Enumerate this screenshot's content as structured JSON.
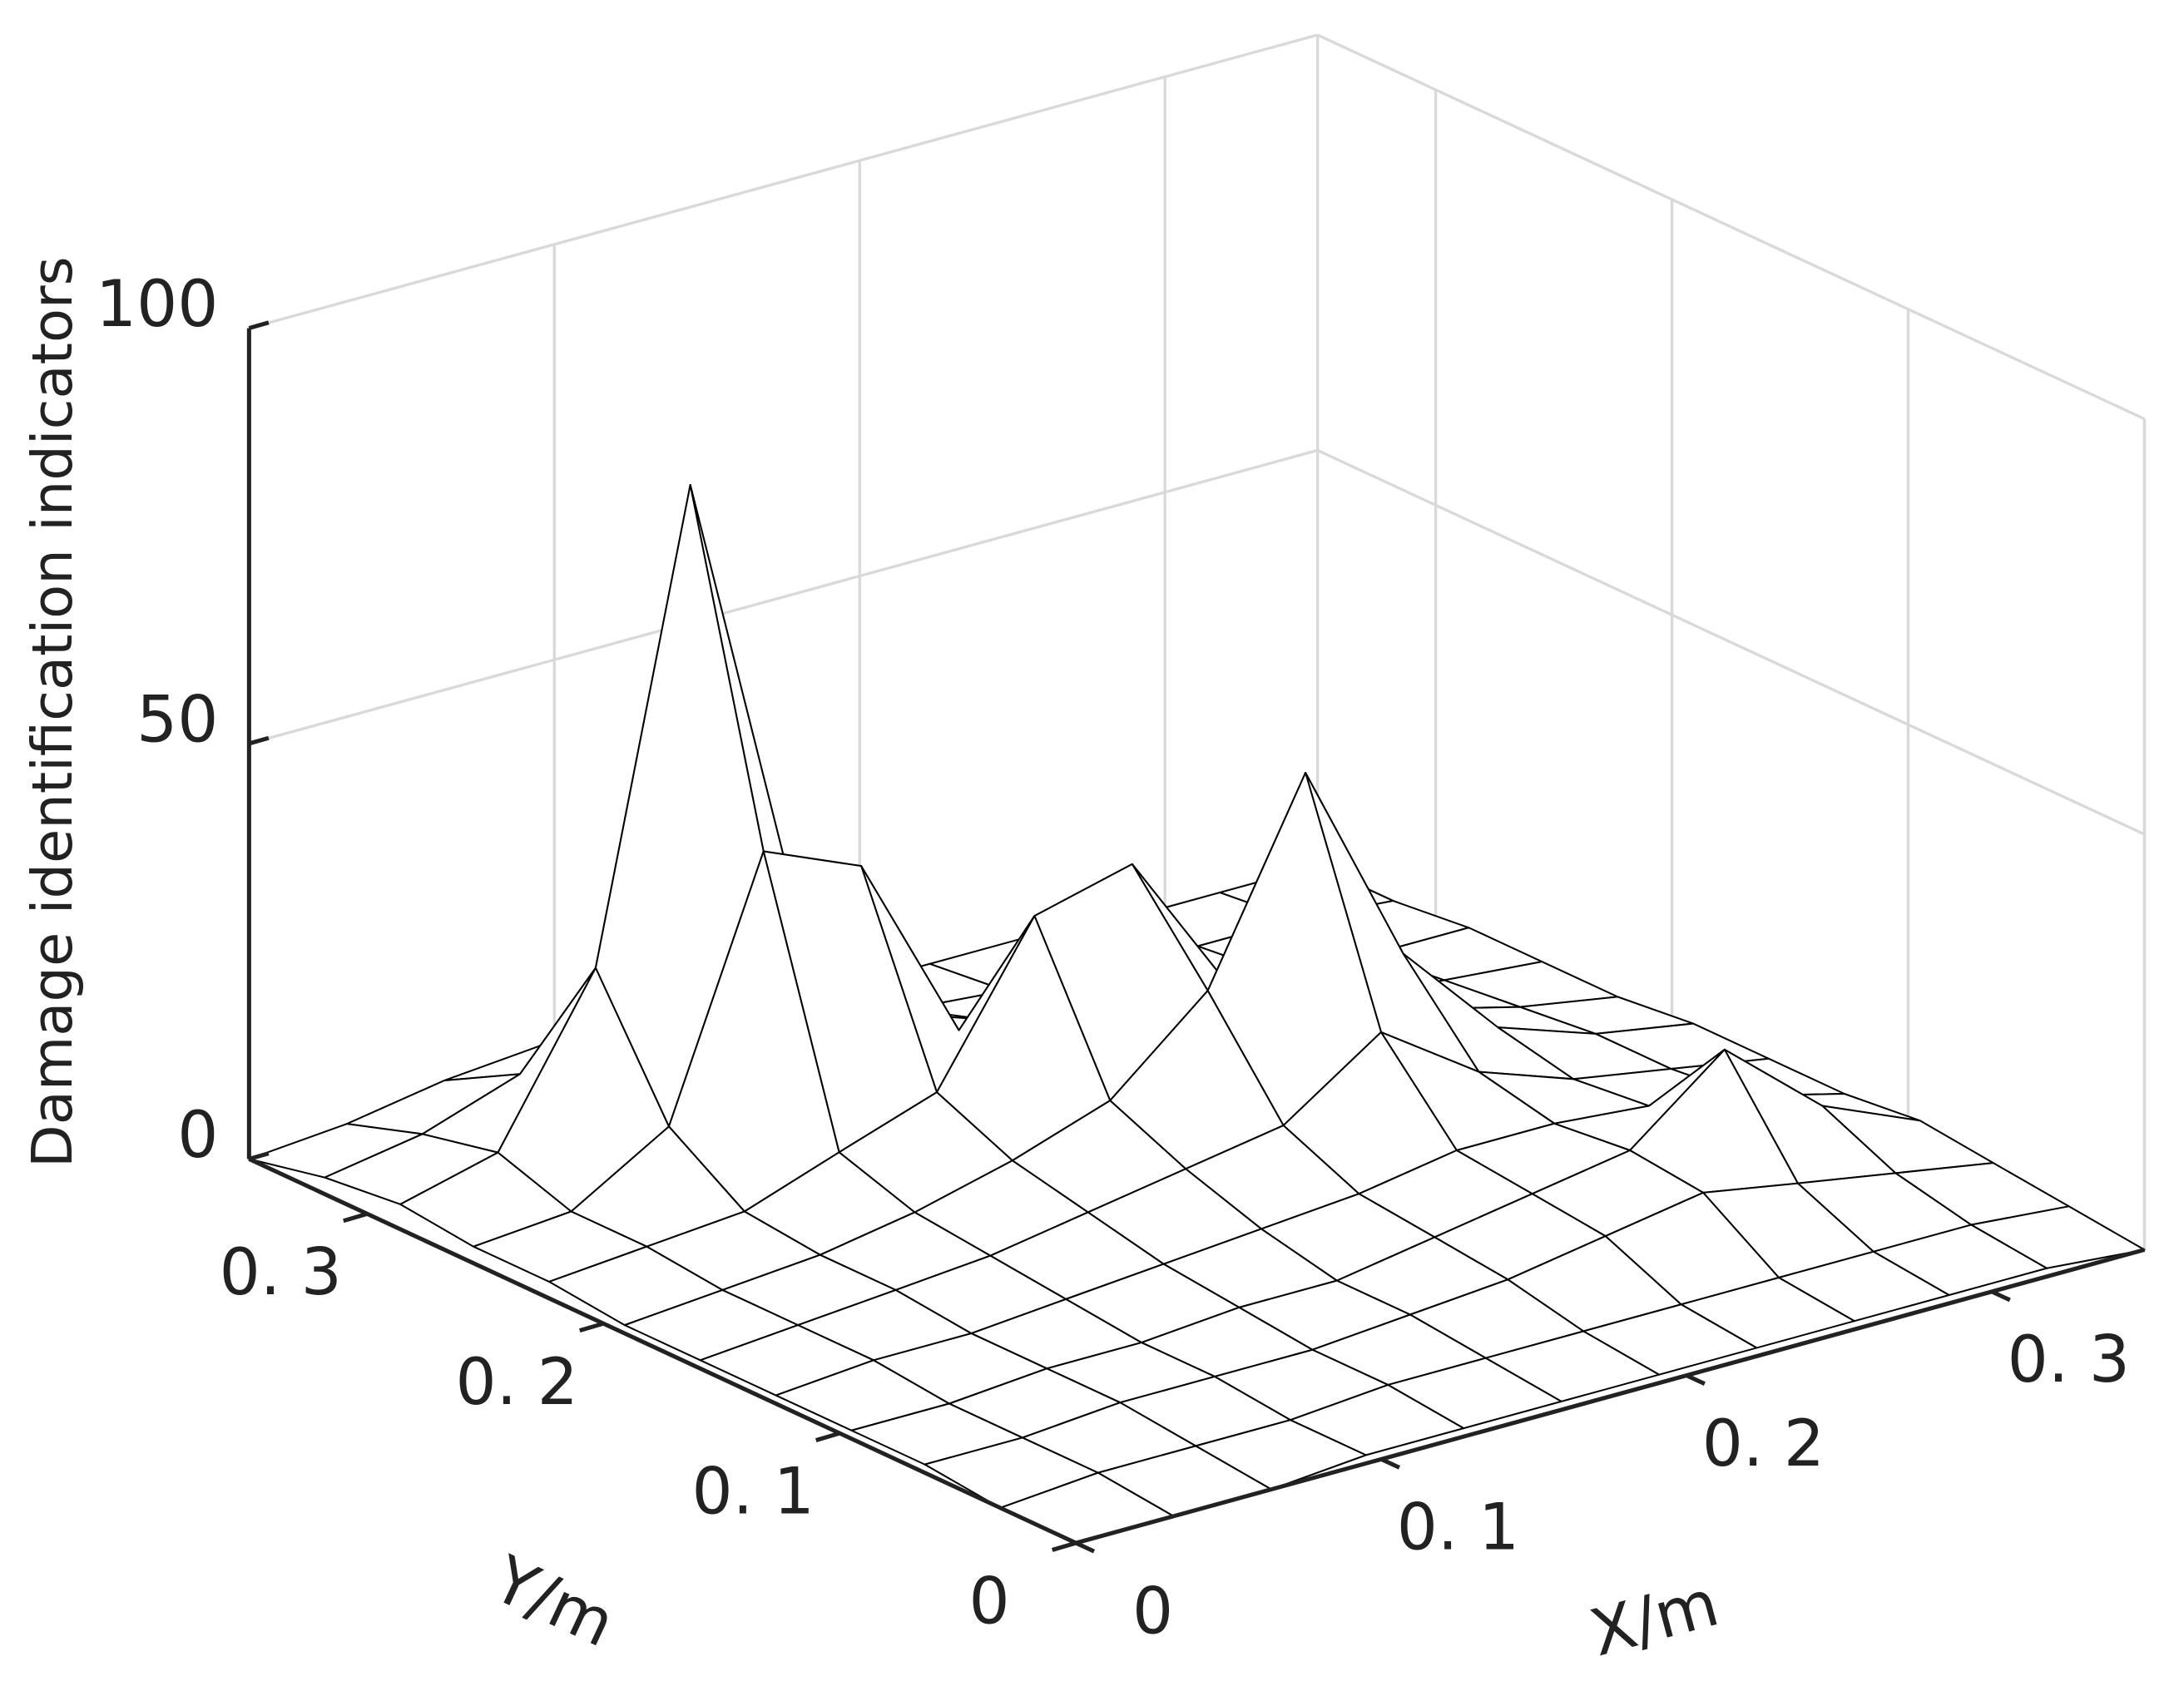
{
  "chart_data": {
    "type": "surface",
    "zlabel": "Damage identification indicators",
    "xlabel": "X/m",
    "ylabel": "Y/m",
    "x": [
      0,
      0.032,
      0.064,
      0.095,
      0.127,
      0.159,
      0.191,
      0.223,
      0.255,
      0.286,
      0.318,
      0.35
    ],
    "y": [
      0,
      0.032,
      0.064,
      0.095,
      0.127,
      0.159,
      0.191,
      0.223,
      0.255,
      0.286,
      0.318,
      0.35
    ],
    "z": [
      [
        0,
        0,
        0,
        1,
        1,
        1,
        1,
        1,
        1,
        1,
        1,
        0
      ],
      [
        0,
        1,
        1,
        1,
        2,
        2,
        2,
        2,
        2,
        2,
        2,
        1
      ],
      [
        1,
        1,
        2,
        2,
        2,
        3,
        4,
        6,
        8,
        6,
        4,
        2
      ],
      [
        1,
        1,
        2,
        2,
        3,
        3,
        5,
        7,
        9,
        18,
        8,
        3
      ],
      [
        1,
        2,
        2,
        3,
        4,
        5,
        6,
        8,
        8,
        7,
        5,
        2
      ],
      [
        1,
        2,
        3,
        4,
        6,
        8,
        10,
        18,
        10,
        6,
        4,
        2
      ],
      [
        1,
        2,
        3,
        5,
        8,
        12,
        22,
        45,
        20,
        8,
        4,
        2
      ],
      [
        2,
        3,
        4,
        8,
        12,
        30,
        33,
        15,
        10,
        6,
        3,
        1
      ],
      [
        2,
        3,
        10,
        40,
        35,
        12,
        8,
        6,
        4,
        3,
        2,
        1
      ],
      [
        3,
        6,
        25,
        80,
        30,
        10,
        6,
        4,
        3,
        2,
        1,
        1
      ],
      [
        2,
        4,
        8,
        12,
        8,
        5,
        3,
        2,
        2,
        1,
        1,
        0
      ],
      [
        0,
        1,
        3,
        4,
        3,
        2,
        1,
        1,
        1,
        0,
        0,
        0
      ]
    ],
    "xlim": [
      0,
      0.35
    ],
    "ylim": [
      0,
      0.35
    ],
    "zlim": [
      0,
      100
    ],
    "xticks": [
      0,
      {
        "value": 0.1,
        "label": "0. 1"
      },
      {
        "value": 0.2,
        "label": "0. 2"
      },
      {
        "value": 0.3,
        "label": "0. 3"
      }
    ],
    "yticks": [
      0,
      {
        "value": 0.1,
        "label": "0. 1"
      },
      {
        "value": 0.2,
        "label": "0. 2"
      },
      {
        "value": 0.3,
        "label": "0. 3"
      }
    ],
    "zticks": [
      0,
      50,
      100
    ],
    "grid": true,
    "color": "#ffffff",
    "edge_color": "#000000"
  }
}
